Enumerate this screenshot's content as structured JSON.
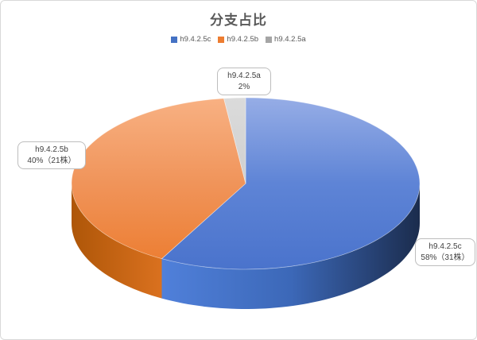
{
  "window": {
    "background": "#ffffff",
    "border_color": "#d9d9d9"
  },
  "chart_data": {
    "type": "pie",
    "style": "3d",
    "title": "分支占比",
    "legend_position": "top",
    "total": 100,
    "slices": [
      {
        "label": "h9.4.2.5c",
        "value": 58,
        "count": 31,
        "callout_line2": "58%（31株）",
        "color": "#4472C4",
        "shade": {
          "top": [
            "#96ADE6",
            "#5E84D6",
            "#4A73CC"
          ],
          "side": [
            "#5080DA",
            "#3C68B8",
            "#1B2C4D"
          ]
        }
      },
      {
        "label": "h9.4.2.5b",
        "value": 40,
        "count": 21,
        "callout_line2": "40%（21株）",
        "color": "#ED7D31",
        "shade": {
          "top": [
            "#F8B183",
            "#F0945A",
            "#EC7C2F"
          ],
          "side": [
            "#AE5608",
            "#DA711F"
          ]
        }
      },
      {
        "label": "h9.4.2.5a",
        "value": 2,
        "count": null,
        "callout_line2": "2%",
        "color": "#A5A5A5",
        "shade": {
          "top": [
            "#DBDBDB",
            "#C4C4C4"
          ],
          "side": [
            "#9B9B9B",
            "#B3B3B3"
          ]
        }
      }
    ]
  },
  "title_color": "#595959",
  "legend_text_color": "#595959",
  "callout": {
    "border_color": "#bdbdbd",
    "text_color": "#404040"
  }
}
